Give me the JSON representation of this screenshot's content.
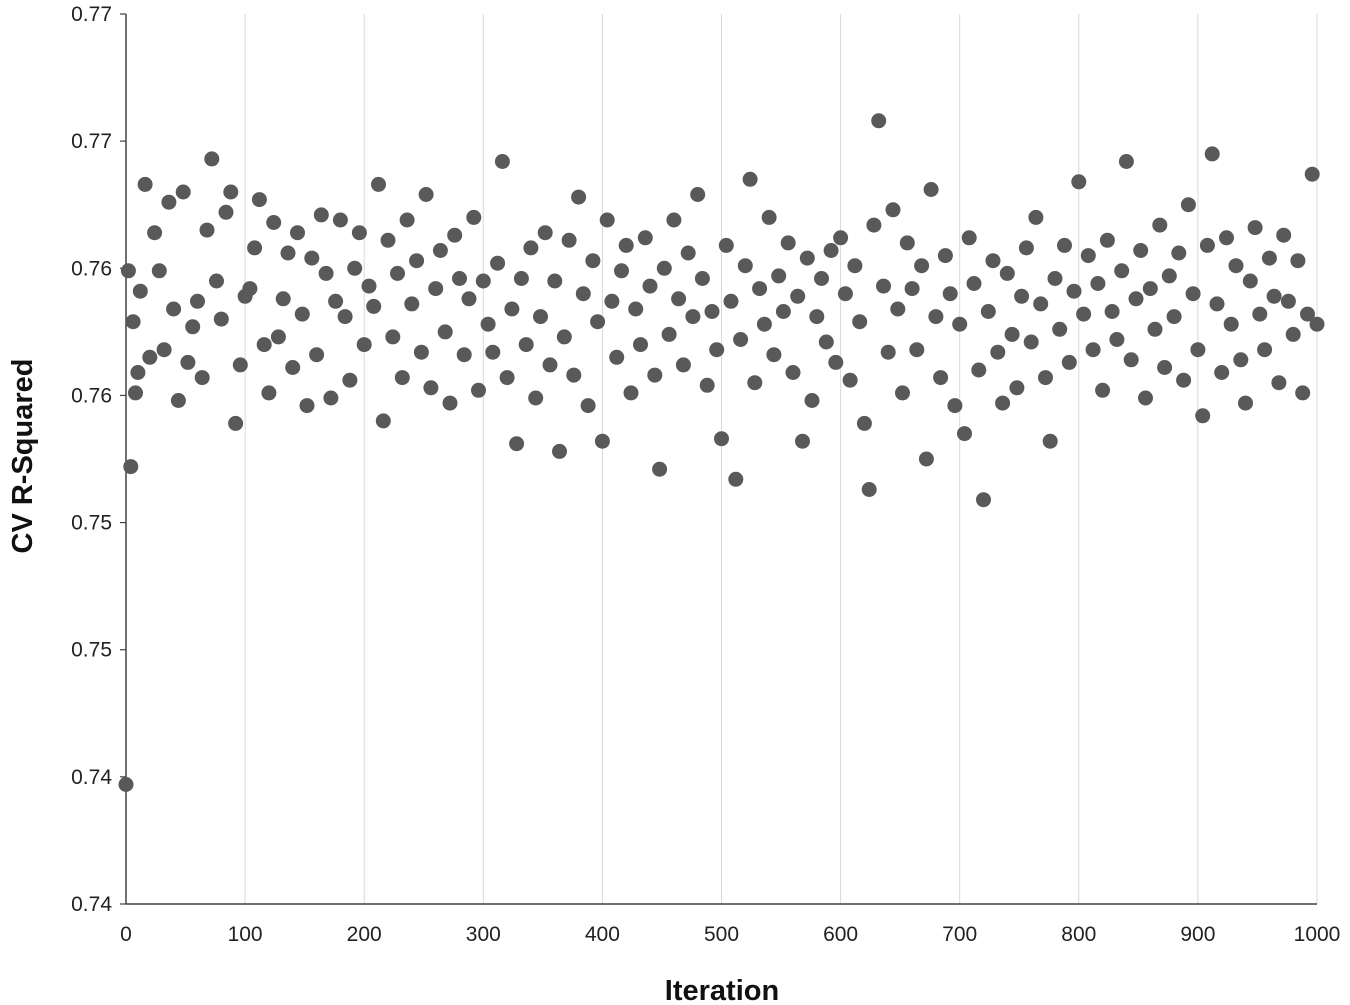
{
  "chart_data": {
    "type": "scatter",
    "title": "",
    "xlabel": "Iteration",
    "ylabel": "CV R-Squared",
    "xlim": [
      0,
      1000
    ],
    "ylim": [
      0.735,
      0.77
    ],
    "x_ticks": [
      "0",
      "100",
      "200",
      "300",
      "400",
      "500",
      "600",
      "700",
      "800",
      "900",
      "1000"
    ],
    "y_ticks": [
      "0.74",
      "0.74",
      "0.75",
      "0.75",
      "0.76",
      "0.76",
      "0.77",
      "0.77"
    ],
    "grid": "vertical",
    "legend": "none",
    "marker_color": "#595959",
    "series": [
      {
        "points": [
          [
            0,
            0.7397
          ],
          [
            2,
            0.7599
          ],
          [
            4,
            0.7522
          ],
          [
            6,
            0.7579
          ],
          [
            8,
            0.7551
          ],
          [
            10,
            0.7559
          ],
          [
            12,
            0.7591
          ],
          [
            16,
            0.7633
          ],
          [
            20,
            0.7565
          ],
          [
            24,
            0.7614
          ],
          [
            28,
            0.7599
          ],
          [
            32,
            0.7568
          ],
          [
            36,
            0.7626
          ],
          [
            40,
            0.7584
          ],
          [
            44,
            0.7548
          ],
          [
            48,
            0.763
          ],
          [
            52,
            0.7563
          ],
          [
            56,
            0.7577
          ],
          [
            60,
            0.7587
          ],
          [
            64,
            0.7557
          ],
          [
            68,
            0.7615
          ],
          [
            72,
            0.7643
          ],
          [
            76,
            0.7595
          ],
          [
            80,
            0.758
          ],
          [
            84,
            0.7622
          ],
          [
            88,
            0.763
          ],
          [
            92,
            0.7539
          ],
          [
            96,
            0.7562
          ],
          [
            100,
            0.7589
          ],
          [
            104,
            0.7592
          ],
          [
            108,
            0.7608
          ],
          [
            112,
            0.7627
          ],
          [
            116,
            0.757
          ],
          [
            120,
            0.7551
          ],
          [
            124,
            0.7618
          ],
          [
            128,
            0.7573
          ],
          [
            132,
            0.7588
          ],
          [
            136,
            0.7606
          ],
          [
            140,
            0.7561
          ],
          [
            144,
            0.7614
          ],
          [
            148,
            0.7582
          ],
          [
            152,
            0.7546
          ],
          [
            156,
            0.7604
          ],
          [
            160,
            0.7566
          ],
          [
            164,
            0.7621
          ],
          [
            168,
            0.7598
          ],
          [
            172,
            0.7549
          ],
          [
            176,
            0.7587
          ],
          [
            180,
            0.7619
          ],
          [
            184,
            0.7581
          ],
          [
            188,
            0.7556
          ],
          [
            192,
            0.76
          ],
          [
            196,
            0.7614
          ],
          [
            200,
            0.757
          ],
          [
            204,
            0.7593
          ],
          [
            208,
            0.7585
          ],
          [
            212,
            0.7633
          ],
          [
            216,
            0.754
          ],
          [
            220,
            0.7611
          ],
          [
            224,
            0.7573
          ],
          [
            228,
            0.7598
          ],
          [
            232,
            0.7557
          ],
          [
            236,
            0.7619
          ],
          [
            240,
            0.7586
          ],
          [
            244,
            0.7603
          ],
          [
            248,
            0.7567
          ],
          [
            252,
            0.7629
          ],
          [
            256,
            0.7553
          ],
          [
            260,
            0.7592
          ],
          [
            264,
            0.7607
          ],
          [
            268,
            0.7575
          ],
          [
            272,
            0.7547
          ],
          [
            276,
            0.7613
          ],
          [
            280,
            0.7596
          ],
          [
            284,
            0.7566
          ],
          [
            288,
            0.7588
          ],
          [
            292,
            0.762
          ],
          [
            296,
            0.7552
          ],
          [
            300,
            0.7595
          ],
          [
            304,
            0.7578
          ],
          [
            308,
            0.7567
          ],
          [
            312,
            0.7602
          ],
          [
            316,
            0.7642
          ],
          [
            320,
            0.7557
          ],
          [
            324,
            0.7584
          ],
          [
            328,
            0.7531
          ],
          [
            332,
            0.7596
          ],
          [
            336,
            0.757
          ],
          [
            340,
            0.7608
          ],
          [
            344,
            0.7549
          ],
          [
            348,
            0.7581
          ],
          [
            352,
            0.7614
          ],
          [
            356,
            0.7562
          ],
          [
            360,
            0.7595
          ],
          [
            364,
            0.7528
          ],
          [
            368,
            0.7573
          ],
          [
            372,
            0.7611
          ],
          [
            376,
            0.7558
          ],
          [
            380,
            0.7628
          ],
          [
            384,
            0.759
          ],
          [
            388,
            0.7546
          ],
          [
            392,
            0.7603
          ],
          [
            396,
            0.7579
          ],
          [
            400,
            0.7532
          ],
          [
            404,
            0.7619
          ],
          [
            408,
            0.7587
          ],
          [
            412,
            0.7565
          ],
          [
            416,
            0.7599
          ],
          [
            420,
            0.7609
          ],
          [
            424,
            0.7551
          ],
          [
            428,
            0.7584
          ],
          [
            432,
            0.757
          ],
          [
            436,
            0.7612
          ],
          [
            440,
            0.7593
          ],
          [
            444,
            0.7558
          ],
          [
            448,
            0.7521
          ],
          [
            452,
            0.76
          ],
          [
            456,
            0.7574
          ],
          [
            460,
            0.7619
          ],
          [
            464,
            0.7588
          ],
          [
            468,
            0.7562
          ],
          [
            472,
            0.7606
          ],
          [
            476,
            0.7581
          ],
          [
            480,
            0.7629
          ],
          [
            484,
            0.7596
          ],
          [
            488,
            0.7554
          ],
          [
            492,
            0.7583
          ],
          [
            496,
            0.7568
          ],
          [
            500,
            0.7533
          ],
          [
            504,
            0.7609
          ],
          [
            508,
            0.7587
          ],
          [
            512,
            0.7517
          ],
          [
            516,
            0.7572
          ],
          [
            520,
            0.7601
          ],
          [
            524,
            0.7635
          ],
          [
            528,
            0.7555
          ],
          [
            532,
            0.7592
          ],
          [
            536,
            0.7578
          ],
          [
            540,
            0.762
          ],
          [
            544,
            0.7566
          ],
          [
            548,
            0.7597
          ],
          [
            552,
            0.7583
          ],
          [
            556,
            0.761
          ],
          [
            560,
            0.7559
          ],
          [
            564,
            0.7589
          ],
          [
            568,
            0.7532
          ],
          [
            572,
            0.7604
          ],
          [
            576,
            0.7548
          ],
          [
            580,
            0.7581
          ],
          [
            584,
            0.7596
          ],
          [
            588,
            0.7571
          ],
          [
            592,
            0.7607
          ],
          [
            596,
            0.7563
          ],
          [
            600,
            0.7612
          ],
          [
            604,
            0.759
          ],
          [
            608,
            0.7556
          ],
          [
            612,
            0.7601
          ],
          [
            616,
            0.7579
          ],
          [
            620,
            0.7539
          ],
          [
            624,
            0.7513
          ],
          [
            628,
            0.7617
          ],
          [
            632,
            0.7658
          ],
          [
            636,
            0.7593
          ],
          [
            640,
            0.7567
          ],
          [
            644,
            0.7623
          ],
          [
            648,
            0.7584
          ],
          [
            652,
            0.7551
          ],
          [
            656,
            0.761
          ],
          [
            660,
            0.7592
          ],
          [
            664,
            0.7568
          ],
          [
            668,
            0.7601
          ],
          [
            672,
            0.7525
          ],
          [
            676,
            0.7631
          ],
          [
            680,
            0.7581
          ],
          [
            684,
            0.7557
          ],
          [
            688,
            0.7605
          ],
          [
            692,
            0.759
          ],
          [
            696,
            0.7546
          ],
          [
            700,
            0.7578
          ],
          [
            704,
            0.7535
          ],
          [
            708,
            0.7612
          ],
          [
            712,
            0.7594
          ],
          [
            716,
            0.756
          ],
          [
            720,
            0.7509
          ],
          [
            724,
            0.7583
          ],
          [
            728,
            0.7603
          ],
          [
            732,
            0.7567
          ],
          [
            736,
            0.7547
          ],
          [
            740,
            0.7598
          ],
          [
            744,
            0.7574
          ],
          [
            748,
            0.7553
          ],
          [
            752,
            0.7589
          ],
          [
            756,
            0.7608
          ],
          [
            760,
            0.7571
          ],
          [
            764,
            0.762
          ],
          [
            768,
            0.7586
          ],
          [
            772,
            0.7557
          ],
          [
            776,
            0.7532
          ],
          [
            780,
            0.7596
          ],
          [
            784,
            0.7576
          ],
          [
            788,
            0.7609
          ],
          [
            792,
            0.7563
          ],
          [
            796,
            0.7591
          ],
          [
            800,
            0.7634
          ],
          [
            804,
            0.7582
          ],
          [
            808,
            0.7605
          ],
          [
            812,
            0.7568
          ],
          [
            816,
            0.7594
          ],
          [
            820,
            0.7552
          ],
          [
            824,
            0.7611
          ],
          [
            828,
            0.7583
          ],
          [
            832,
            0.7572
          ],
          [
            836,
            0.7599
          ],
          [
            840,
            0.7642
          ],
          [
            844,
            0.7564
          ],
          [
            848,
            0.7588
          ],
          [
            852,
            0.7607
          ],
          [
            856,
            0.7549
          ],
          [
            860,
            0.7592
          ],
          [
            864,
            0.7576
          ],
          [
            868,
            0.7617
          ],
          [
            872,
            0.7561
          ],
          [
            876,
            0.7597
          ],
          [
            880,
            0.7581
          ],
          [
            884,
            0.7606
          ],
          [
            888,
            0.7556
          ],
          [
            892,
            0.7625
          ],
          [
            896,
            0.759
          ],
          [
            900,
            0.7568
          ],
          [
            904,
            0.7542
          ],
          [
            908,
            0.7609
          ],
          [
            912,
            0.7645
          ],
          [
            916,
            0.7586
          ],
          [
            920,
            0.7559
          ],
          [
            924,
            0.7612
          ],
          [
            928,
            0.7578
          ],
          [
            932,
            0.7601
          ],
          [
            936,
            0.7564
          ],
          [
            940,
            0.7547
          ],
          [
            944,
            0.7595
          ],
          [
            948,
            0.7616
          ],
          [
            952,
            0.7582
          ],
          [
            956,
            0.7568
          ],
          [
            960,
            0.7604
          ],
          [
            964,
            0.7589
          ],
          [
            968,
            0.7555
          ],
          [
            972,
            0.7613
          ],
          [
            976,
            0.7587
          ],
          [
            980,
            0.7574
          ],
          [
            984,
            0.7603
          ],
          [
            988,
            0.7551
          ],
          [
            992,
            0.7582
          ],
          [
            996,
            0.7637
          ],
          [
            1000,
            0.7578
          ]
        ]
      }
    ]
  }
}
